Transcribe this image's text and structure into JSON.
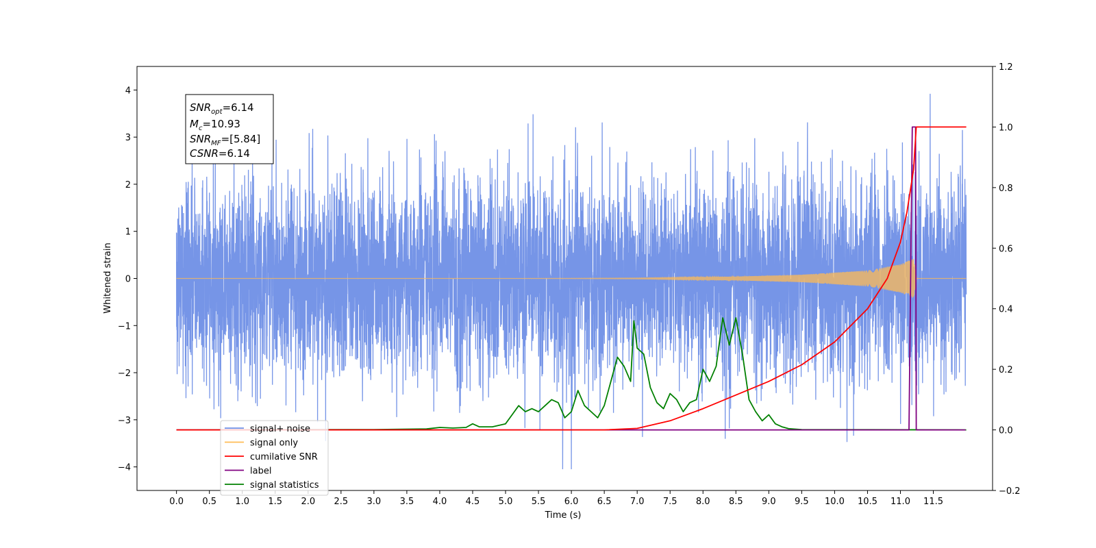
{
  "chart_data": {
    "type": "line",
    "xlabel": "Time (s)",
    "ylabel": "Whitened strain",
    "xlim": [
      -0.6,
      12.4
    ],
    "ylim": [
      -4.5,
      4.5
    ],
    "ylim_right": [
      -0.2,
      1.2
    ],
    "x_ticks": [
      "0.0",
      "0.5",
      "1.0",
      "1.5",
      "2.0",
      "2.5",
      "3.0",
      "3.5",
      "4.0",
      "4.5",
      "5.0",
      "5.5",
      "6.0",
      "6.5",
      "7.0",
      "7.5",
      "8.0",
      "8.5",
      "9.0",
      "9.5",
      "10.0",
      "10.5",
      "11.0",
      "11.5"
    ],
    "y_ticks": [
      "−4",
      "−3",
      "−2",
      "−1",
      "0",
      "1",
      "2",
      "3",
      "4"
    ],
    "y_ticks_right": [
      "−0.2",
      "0.0",
      "0.2",
      "0.4",
      "0.6",
      "0.8",
      "1.0",
      "1.2"
    ],
    "annotation": {
      "lines": [
        {
          "base": "SNR",
          "sub": "opt",
          "value": "=6.14"
        },
        {
          "base": "M",
          "sub": "c",
          "value": "=10.93"
        },
        {
          "base": "SNR",
          "sub": "MF",
          "value": "=[5.84]"
        },
        {
          "base": "CSNR",
          "sub": "",
          "value": "=6.14"
        }
      ]
    },
    "legend_position": "lower-left",
    "series": [
      {
        "name": "signal+ noise",
        "axis": "left",
        "color": "#6f8fe6",
        "description": "whitened noise, amplitude ~±3"
      },
      {
        "name": "signal only",
        "axis": "left",
        "color": "#ffbb55",
        "description": "chirp growing until merger",
        "envelope": {
          "x": [
            0,
            5.0,
            7.0,
            8.5,
            9.5,
            10.5,
            11.0,
            11.2,
            11.25,
            12.0
          ],
          "amp": [
            0.0,
            0.0,
            0.01,
            0.04,
            0.08,
            0.17,
            0.3,
            0.42,
            0.0,
            0.0
          ]
        }
      },
      {
        "name": "cumilative SNR",
        "axis": "right",
        "color": "#ff0000",
        "x": [
          0,
          6.5,
          7.0,
          7.5,
          8.0,
          8.5,
          9.0,
          9.5,
          10.0,
          10.5,
          10.8,
          11.0,
          11.1,
          11.2,
          11.24,
          12.0
        ],
        "y": [
          0,
          0,
          0.005,
          0.03,
          0.07,
          0.115,
          0.16,
          0.215,
          0.29,
          0.4,
          0.5,
          0.62,
          0.72,
          0.86,
          1.0,
          1.0
        ]
      },
      {
        "name": "label",
        "axis": "right",
        "color": "#800080",
        "x": [
          0,
          11.13,
          11.18,
          11.23,
          11.24,
          11.99
        ],
        "y": [
          0,
          0,
          1.0,
          1.0,
          0,
          0
        ]
      },
      {
        "name": "signal statistics",
        "axis": "right",
        "color": "#008000",
        "x": [
          0,
          3.0,
          3.8,
          4.0,
          4.2,
          4.4,
          4.5,
          4.6,
          4.8,
          5.0,
          5.1,
          5.2,
          5.3,
          5.4,
          5.5,
          5.6,
          5.7,
          5.8,
          5.9,
          6.0,
          6.1,
          6.2,
          6.3,
          6.4,
          6.5,
          6.6,
          6.7,
          6.8,
          6.9,
          6.95,
          7.0,
          7.1,
          7.2,
          7.3,
          7.4,
          7.5,
          7.6,
          7.7,
          7.8,
          7.9,
          8.0,
          8.1,
          8.2,
          8.3,
          8.4,
          8.5,
          8.6,
          8.7,
          8.8,
          8.9,
          9.0,
          9.1,
          9.2,
          9.3,
          9.5,
          12.0
        ],
        "y": [
          0,
          0.001,
          0.003,
          0.008,
          0.006,
          0.008,
          0.02,
          0.01,
          0.01,
          0.02,
          0.05,
          0.08,
          0.06,
          0.07,
          0.06,
          0.08,
          0.1,
          0.09,
          0.04,
          0.06,
          0.13,
          0.08,
          0.06,
          0.04,
          0.08,
          0.16,
          0.24,
          0.21,
          0.16,
          0.36,
          0.27,
          0.25,
          0.14,
          0.09,
          0.07,
          0.12,
          0.1,
          0.06,
          0.09,
          0.1,
          0.2,
          0.16,
          0.21,
          0.37,
          0.28,
          0.37,
          0.25,
          0.1,
          0.06,
          0.03,
          0.05,
          0.02,
          0.01,
          0.004,
          0.001,
          0
        ]
      }
    ]
  }
}
